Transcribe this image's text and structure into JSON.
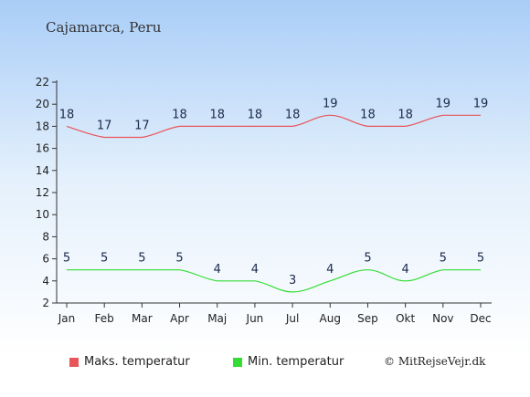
{
  "header": {
    "location": "Cajamarca, Peru"
  },
  "legend": {
    "max_label": "Maks. temperatur",
    "min_label": "Min. temperatur",
    "max_color": "#e8555a",
    "min_color": "#33dd33"
  },
  "credit": "© MitRejseVejr.dk",
  "chart_data": {
    "type": "line",
    "categories": [
      "Jan",
      "Feb",
      "Mar",
      "Apr",
      "Maj",
      "Jun",
      "Jul",
      "Aug",
      "Sep",
      "Okt",
      "Nov",
      "Dec"
    ],
    "series": [
      {
        "name": "Maks. temperatur",
        "values": [
          18,
          17,
          17,
          18,
          18,
          18,
          18,
          19,
          18,
          18,
          19,
          19
        ],
        "color": "#e8555a"
      },
      {
        "name": "Min. temperatur",
        "values": [
          5,
          5,
          5,
          5,
          4,
          4,
          3,
          4,
          5,
          4,
          5,
          5
        ],
        "color": "#33dd33"
      }
    ],
    "yticks": [
      2,
      4,
      6,
      8,
      10,
      12,
      14,
      16,
      18,
      20,
      22
    ],
    "ylim": [
      2,
      22
    ],
    "grid": false,
    "title": "",
    "xlabel": "",
    "ylabel": ""
  }
}
